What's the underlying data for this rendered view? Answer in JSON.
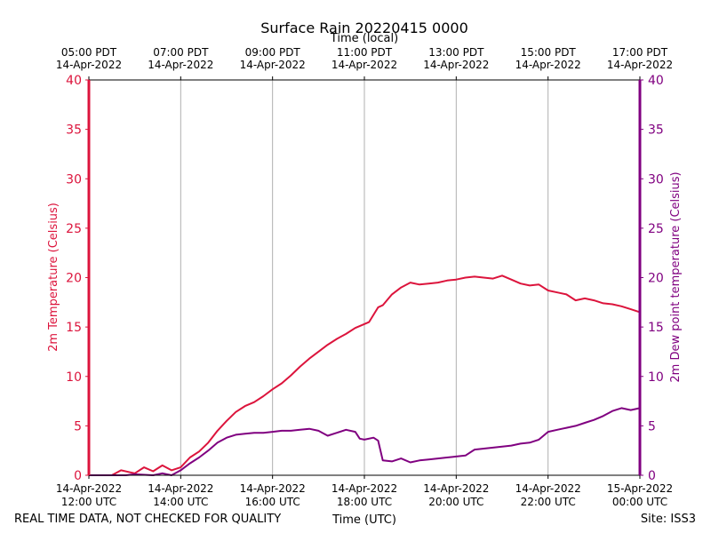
{
  "chart_data": {
    "type": "line",
    "title": "Surface Rain 20220415 0000",
    "top_axis_label": "Time (local)",
    "xlabel": "Time (UTC)",
    "ylabel_left": "2m Temperature (Celsius)",
    "ylabel_right": "2m Dew point temperature (Celsius)",
    "ylim": [
      0,
      40
    ],
    "yticks": [
      0,
      5,
      10,
      15,
      20,
      25,
      30,
      35,
      40
    ],
    "xlim_hours_utc": [
      12,
      24
    ],
    "grid_x": true,
    "bottom_ticks": [
      {
        "hour": 12,
        "date": "14-Apr-2022",
        "time": "12:00 UTC"
      },
      {
        "hour": 14,
        "date": "14-Apr-2022",
        "time": "14:00 UTC"
      },
      {
        "hour": 16,
        "date": "14-Apr-2022",
        "time": "16:00 UTC"
      },
      {
        "hour": 18,
        "date": "14-Apr-2022",
        "time": "18:00 UTC"
      },
      {
        "hour": 20,
        "date": "14-Apr-2022",
        "time": "20:00 UTC"
      },
      {
        "hour": 22,
        "date": "14-Apr-2022",
        "time": "22:00 UTC"
      },
      {
        "hour": 24,
        "date": "15-Apr-2022",
        "time": "00:00 UTC"
      }
    ],
    "top_ticks": [
      {
        "hour": 12,
        "time": "05:00 PDT",
        "date": "14-Apr-2022"
      },
      {
        "hour": 14,
        "time": "07:00 PDT",
        "date": "14-Apr-2022"
      },
      {
        "hour": 16,
        "time": "09:00 PDT",
        "date": "14-Apr-2022"
      },
      {
        "hour": 18,
        "time": "11:00 PDT",
        "date": "14-Apr-2022"
      },
      {
        "hour": 20,
        "time": "13:00 PDT",
        "date": "14-Apr-2022"
      },
      {
        "hour": 22,
        "time": "15:00 PDT",
        "date": "14-Apr-2022"
      },
      {
        "hour": 24,
        "time": "17:00 PDT",
        "date": "14-Apr-2022"
      }
    ],
    "series": [
      {
        "name": "2m Temperature",
        "color": "#dc143c",
        "x": [
          12.0,
          12.5,
          12.7,
          12.9,
          13.0,
          13.2,
          13.4,
          13.6,
          13.8,
          14.0,
          14.2,
          14.4,
          14.6,
          14.8,
          15.0,
          15.2,
          15.4,
          15.6,
          15.8,
          16.0,
          16.2,
          16.4,
          16.6,
          16.8,
          17.0,
          17.2,
          17.4,
          17.6,
          17.8,
          18.0,
          18.1,
          18.3,
          18.4,
          18.6,
          18.8,
          19.0,
          19.2,
          19.4,
          19.6,
          19.8,
          20.0,
          20.2,
          20.4,
          20.6,
          20.8,
          21.0,
          21.2,
          21.4,
          21.6,
          21.8,
          22.0,
          22.2,
          22.4,
          22.6,
          22.8,
          23.0,
          23.2,
          23.4,
          23.6,
          23.8,
          24.0
        ],
        "y": [
          0.0,
          0.0,
          0.5,
          0.3,
          0.2,
          0.8,
          0.4,
          1.0,
          0.5,
          0.8,
          1.8,
          2.4,
          3.3,
          4.5,
          5.5,
          6.4,
          7.0,
          7.4,
          8.0,
          8.7,
          9.3,
          10.1,
          11.0,
          11.8,
          12.5,
          13.2,
          13.8,
          14.3,
          14.9,
          15.3,
          15.5,
          17.0,
          17.2,
          18.3,
          19.0,
          19.5,
          19.3,
          19.4,
          19.5,
          19.7,
          19.8,
          20.0,
          20.1,
          20.0,
          19.9,
          20.2,
          19.8,
          19.4,
          19.2,
          19.3,
          18.7,
          18.5,
          18.3,
          17.7,
          17.9,
          17.7,
          17.4,
          17.3,
          17.1,
          16.8,
          16.5
        ]
      },
      {
        "name": "2m Dew point temperature",
        "color": "#800080",
        "x": [
          12.0,
          12.8,
          13.0,
          13.4,
          13.6,
          13.8,
          14.0,
          14.2,
          14.4,
          14.6,
          14.8,
          15.0,
          15.2,
          15.4,
          15.6,
          15.8,
          16.0,
          16.2,
          16.4,
          16.6,
          16.8,
          17.0,
          17.2,
          17.4,
          17.6,
          17.8,
          17.9,
          18.0,
          18.2,
          18.3,
          18.4,
          18.6,
          18.8,
          19.0,
          19.2,
          19.4,
          19.6,
          19.8,
          20.0,
          20.2,
          20.4,
          20.6,
          20.8,
          21.0,
          21.2,
          21.4,
          21.6,
          21.8,
          22.0,
          22.2,
          22.4,
          22.6,
          22.8,
          23.0,
          23.2,
          23.4,
          23.6,
          23.8,
          24.0
        ],
        "y": [
          0.0,
          0.0,
          0.1,
          0.0,
          0.2,
          0.0,
          0.5,
          1.2,
          1.8,
          2.5,
          3.3,
          3.8,
          4.1,
          4.2,
          4.3,
          4.3,
          4.4,
          4.5,
          4.5,
          4.6,
          4.7,
          4.5,
          4.0,
          4.3,
          4.6,
          4.4,
          3.7,
          3.6,
          3.8,
          3.5,
          1.5,
          1.4,
          1.7,
          1.3,
          1.5,
          1.6,
          1.7,
          1.8,
          1.9,
          2.0,
          2.6,
          2.7,
          2.8,
          2.9,
          3.0,
          3.2,
          3.3,
          3.6,
          4.4,
          4.6,
          4.8,
          5.0,
          5.3,
          5.6,
          6.0,
          6.5,
          6.8,
          6.6,
          6.8
        ]
      }
    ]
  },
  "footer": {
    "left": "REAL TIME DATA, NOT CHECKED FOR QUALITY",
    "site": "Site: ISS3"
  },
  "colors": {
    "left_axis": "#dc143c",
    "right_axis": "#800080",
    "grid": "#b0b0b0"
  }
}
